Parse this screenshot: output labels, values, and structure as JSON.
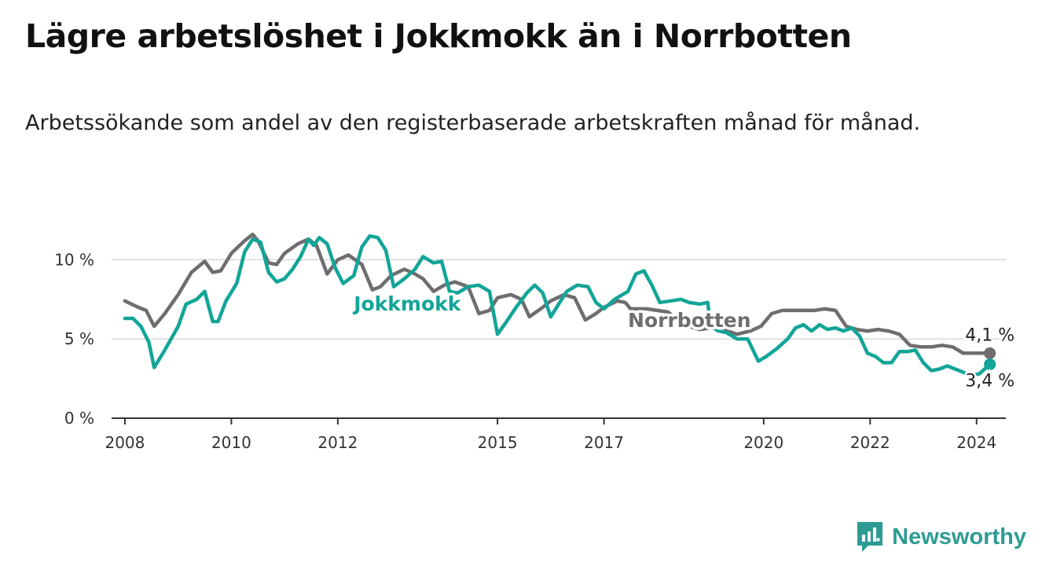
{
  "title": "Lägre arbetslöshet i Jokkmokk än i Norrbotten",
  "subtitle": "Arbetssökande som andel av den registerbaserade arbetskraften månad för månad.",
  "brand": {
    "name": "Newsworthy",
    "icon": "newsworthy-logo-icon",
    "color": "#2d9b93"
  },
  "chart_data": {
    "type": "line",
    "title": "Lägre arbetslöshet i Jokkmokk än i Norrbotten",
    "subtitle": "Arbetssökande som andel av den registerbaserade arbetskraften månad för månad.",
    "xlabel": "",
    "ylabel": "",
    "xlim": [
      2007.75,
      2024.55
    ],
    "ylim": [
      0,
      12.5
    ],
    "x_ticks": [
      2008,
      2010,
      2012,
      2015,
      2017,
      2020,
      2022,
      2024
    ],
    "x_tick_labels": [
      "2008",
      "2010",
      "2012",
      "2015",
      "2017",
      "2020",
      "2022",
      "2024"
    ],
    "y_ticks": [
      0,
      5,
      10
    ],
    "y_tick_labels": [
      "0 %",
      "5 %",
      "10 %"
    ],
    "grid": true,
    "series": [
      {
        "name": "Norrbotten",
        "label": "Norrbotten",
        "color": "#6f6d70",
        "end_label": "4,1 %",
        "points": [
          [
            2008.0,
            7.4
          ],
          [
            2008.25,
            7.0
          ],
          [
            2008.4,
            6.8
          ],
          [
            2008.55,
            5.8
          ],
          [
            2008.75,
            6.6
          ],
          [
            2009.0,
            7.8
          ],
          [
            2009.25,
            9.2
          ],
          [
            2009.5,
            9.9
          ],
          [
            2009.65,
            9.2
          ],
          [
            2009.8,
            9.3
          ],
          [
            2010.0,
            10.4
          ],
          [
            2010.25,
            11.2
          ],
          [
            2010.4,
            11.6
          ],
          [
            2010.5,
            11.2
          ],
          [
            2010.7,
            9.8
          ],
          [
            2010.85,
            9.7
          ],
          [
            2011.0,
            10.4
          ],
          [
            2011.25,
            11.0
          ],
          [
            2011.45,
            11.3
          ],
          [
            2011.6,
            10.9
          ],
          [
            2011.8,
            9.1
          ],
          [
            2012.0,
            10.0
          ],
          [
            2012.2,
            10.3
          ],
          [
            2012.45,
            9.7
          ],
          [
            2012.65,
            8.1
          ],
          [
            2012.8,
            8.3
          ],
          [
            2013.0,
            9.0
          ],
          [
            2013.25,
            9.4
          ],
          [
            2013.45,
            9.1
          ],
          [
            2013.6,
            8.8
          ],
          [
            2013.8,
            8.0
          ],
          [
            2014.0,
            8.4
          ],
          [
            2014.2,
            8.6
          ],
          [
            2014.45,
            8.3
          ],
          [
            2014.65,
            6.6
          ],
          [
            2014.85,
            6.8
          ],
          [
            2015.0,
            7.6
          ],
          [
            2015.25,
            7.8
          ],
          [
            2015.45,
            7.5
          ],
          [
            2015.6,
            6.4
          ],
          [
            2015.85,
            7.0
          ],
          [
            2016.0,
            7.4
          ],
          [
            2016.25,
            7.8
          ],
          [
            2016.45,
            7.6
          ],
          [
            2016.65,
            6.2
          ],
          [
            2016.85,
            6.6
          ],
          [
            2017.0,
            7.0
          ],
          [
            2017.25,
            7.4
          ],
          [
            2017.4,
            7.3
          ],
          [
            2017.5,
            6.9
          ],
          [
            2017.8,
            6.9
          ],
          [
            2018.0,
            6.8
          ],
          [
            2018.2,
            6.7
          ],
          [
            2018.5,
            5.9
          ],
          [
            2018.8,
            5.6
          ],
          [
            2019.0,
            5.7
          ],
          [
            2019.25,
            5.6
          ],
          [
            2019.5,
            5.3
          ],
          [
            2019.75,
            5.5
          ],
          [
            2019.95,
            5.8
          ],
          [
            2020.15,
            6.6
          ],
          [
            2020.35,
            6.8
          ],
          [
            2020.55,
            6.8
          ],
          [
            2020.75,
            6.8
          ],
          [
            2020.95,
            6.8
          ],
          [
            2021.15,
            6.9
          ],
          [
            2021.35,
            6.8
          ],
          [
            2021.55,
            5.8
          ],
          [
            2021.75,
            5.6
          ],
          [
            2021.95,
            5.5
          ],
          [
            2022.15,
            5.6
          ],
          [
            2022.35,
            5.5
          ],
          [
            2022.55,
            5.3
          ],
          [
            2022.75,
            4.6
          ],
          [
            2022.95,
            4.5
          ],
          [
            2023.15,
            4.5
          ],
          [
            2023.35,
            4.6
          ],
          [
            2023.55,
            4.5
          ],
          [
            2023.75,
            4.1
          ],
          [
            2023.95,
            4.1
          ],
          [
            2024.15,
            4.1
          ],
          [
            2024.25,
            4.1
          ]
        ]
      },
      {
        "name": "Jokkmokk",
        "label": "Jokkmokk",
        "color": "#12a598",
        "end_label": "3,4 %",
        "points": [
          [
            2008.0,
            6.3
          ],
          [
            2008.15,
            6.3
          ],
          [
            2008.3,
            5.8
          ],
          [
            2008.45,
            4.8
          ],
          [
            2008.55,
            3.2
          ],
          [
            2008.75,
            4.3
          ],
          [
            2009.0,
            5.8
          ],
          [
            2009.15,
            7.2
          ],
          [
            2009.35,
            7.5
          ],
          [
            2009.5,
            8.0
          ],
          [
            2009.65,
            6.1
          ],
          [
            2009.75,
            6.1
          ],
          [
            2009.9,
            7.4
          ],
          [
            2010.1,
            8.5
          ],
          [
            2010.25,
            10.5
          ],
          [
            2010.4,
            11.3
          ],
          [
            2010.55,
            11.1
          ],
          [
            2010.7,
            9.2
          ],
          [
            2010.85,
            8.6
          ],
          [
            2011.0,
            8.8
          ],
          [
            2011.15,
            9.4
          ],
          [
            2011.3,
            10.2
          ],
          [
            2011.45,
            11.3
          ],
          [
            2011.55,
            10.9
          ],
          [
            2011.65,
            11.4
          ],
          [
            2011.8,
            11.0
          ],
          [
            2011.95,
            9.5
          ],
          [
            2012.1,
            8.5
          ],
          [
            2012.3,
            9.0
          ],
          [
            2012.45,
            10.8
          ],
          [
            2012.6,
            11.5
          ],
          [
            2012.75,
            11.4
          ],
          [
            2012.9,
            10.6
          ],
          [
            2013.05,
            8.3
          ],
          [
            2013.25,
            8.8
          ],
          [
            2013.45,
            9.4
          ],
          [
            2013.6,
            10.2
          ],
          [
            2013.8,
            9.8
          ],
          [
            2013.95,
            9.9
          ],
          [
            2014.1,
            8.0
          ],
          [
            2014.25,
            7.9
          ],
          [
            2014.45,
            8.3
          ],
          [
            2014.65,
            8.4
          ],
          [
            2014.85,
            8.0
          ],
          [
            2015.0,
            5.3
          ],
          [
            2015.15,
            6.0
          ],
          [
            2015.35,
            7.0
          ],
          [
            2015.55,
            7.9
          ],
          [
            2015.7,
            8.4
          ],
          [
            2015.85,
            7.9
          ],
          [
            2016.0,
            6.4
          ],
          [
            2016.15,
            7.2
          ],
          [
            2016.3,
            8.0
          ],
          [
            2016.5,
            8.4
          ],
          [
            2016.7,
            8.3
          ],
          [
            2016.85,
            7.3
          ],
          [
            2017.0,
            6.9
          ],
          [
            2017.2,
            7.5
          ],
          [
            2017.45,
            8.0
          ],
          [
            2017.6,
            9.1
          ],
          [
            2017.75,
            9.3
          ],
          [
            2017.9,
            8.4
          ],
          [
            2018.05,
            7.3
          ],
          [
            2018.25,
            7.4
          ],
          [
            2018.45,
            7.5
          ],
          [
            2018.6,
            7.3
          ],
          [
            2018.8,
            7.2
          ],
          [
            2018.95,
            7.3
          ],
          [
            2019.0,
            5.8
          ],
          [
            2019.15,
            5.5
          ],
          [
            2019.3,
            5.4
          ],
          [
            2019.5,
            5.0
          ],
          [
            2019.7,
            5.0
          ],
          [
            2019.9,
            3.6
          ],
          [
            2020.05,
            3.9
          ],
          [
            2020.25,
            4.4
          ],
          [
            2020.45,
            5.0
          ],
          [
            2020.6,
            5.7
          ],
          [
            2020.75,
            5.9
          ],
          [
            2020.9,
            5.5
          ],
          [
            2021.05,
            5.9
          ],
          [
            2021.2,
            5.6
          ],
          [
            2021.35,
            5.7
          ],
          [
            2021.5,
            5.5
          ],
          [
            2021.65,
            5.7
          ],
          [
            2021.8,
            5.2
          ],
          [
            2021.95,
            4.1
          ],
          [
            2022.1,
            3.9
          ],
          [
            2022.25,
            3.5
          ],
          [
            2022.4,
            3.5
          ],
          [
            2022.55,
            4.2
          ],
          [
            2022.7,
            4.2
          ],
          [
            2022.85,
            4.3
          ],
          [
            2023.0,
            3.5
          ],
          [
            2023.15,
            3.0
          ],
          [
            2023.3,
            3.1
          ],
          [
            2023.45,
            3.3
          ],
          [
            2023.6,
            3.1
          ],
          [
            2023.75,
            2.9
          ],
          [
            2023.9,
            2.7
          ],
          [
            2024.05,
            2.8
          ],
          [
            2024.15,
            3.1
          ],
          [
            2024.25,
            3.4
          ]
        ]
      }
    ]
  }
}
